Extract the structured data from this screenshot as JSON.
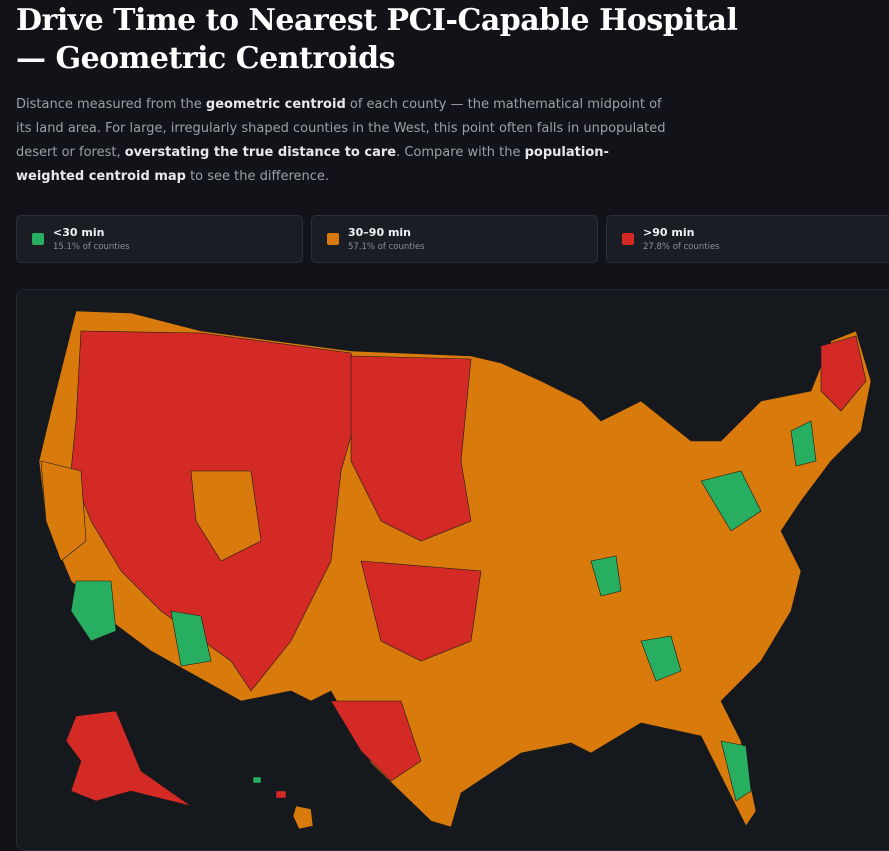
{
  "header": {
    "title_lines": [
      "Drive Time to Nearest PCI-Capable Hospital",
      "— Geometric Centroids"
    ]
  },
  "description": [
    {
      "text": "Distance measured from the ",
      "bold": false
    },
    {
      "text": "geometric centroid",
      "bold": true
    },
    {
      "text": " of each county — the mathematical midpoint of its land area. For large, irregularly shaped counties in the West, this point often falls in unpopulated desert or forest, ",
      "bold": false
    },
    {
      "text": "overstating the true distance to care",
      "bold": true
    },
    {
      "text": ". Compare with the ",
      "bold": false
    },
    {
      "text": "population-weighted centroid map",
      "bold": true
    },
    {
      "text": " to see the difference.",
      "bold": false
    }
  ],
  "legend": [
    {
      "label": "<30 min",
      "share": "15.1% of counties",
      "color": "#27ae60"
    },
    {
      "label": "30–90 min",
      "share": "57.1% of counties",
      "color": "#d97b0c"
    },
    {
      "label": ">90 min",
      "share": "27.8% of counties",
      "color": "#d42a25"
    }
  ]
}
